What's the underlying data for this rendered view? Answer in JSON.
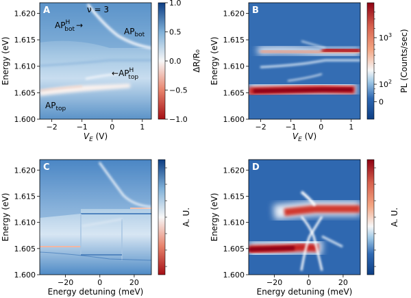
{
  "colors": {
    "red": "#a50f15",
    "white": "#f7f7f7",
    "blue": "#2c5fa8",
    "blue_dark": "#0d3e84",
    "red_dark": "#8e0012"
  },
  "chart_data": [
    {
      "type": "heatmap",
      "panel": "A",
      "title": "ν = 3",
      "xlabel": "V_E (V)",
      "ylabel": "Energy (eV)",
      "xlim": [
        -2.4,
        1.3
      ],
      "ylim": [
        1.6,
        1.622
      ],
      "xticks": [
        -2,
        -1,
        0,
        1
      ],
      "yticks": [
        1.6,
        1.605,
        1.61,
        1.615,
        1.62
      ],
      "colorbar": {
        "label": "ΔR/R₀",
        "range": [
          -1.0,
          1.0
        ],
        "ticks": [
          -1.0,
          -0.5,
          0.0,
          0.5,
          1.0
        ],
        "colormap": "RdBu"
      },
      "annotations": [
        {
          "text": "AP",
          "sup": "H",
          "sub": "bot",
          "arrow": "→"
        },
        {
          "text": "AP",
          "sub": "bot"
        },
        {
          "text": "AP",
          "sup": "H",
          "sub": "top",
          "arrow": "←"
        },
        {
          "text": "AP",
          "sub": "top"
        }
      ]
    },
    {
      "type": "heatmap",
      "panel": "B",
      "xlabel": "V_E (V)",
      "ylabel": "Energy (eV)",
      "xlim": [
        -2.4,
        1.3
      ],
      "ylim": [
        1.6,
        1.622
      ],
      "xticks": [
        -2,
        -1,
        0,
        1
      ],
      "yticks": [
        1.6,
        1.605,
        1.61,
        1.615,
        1.62
      ],
      "colorbar": {
        "label": "PL (Counts/sec)",
        "scale": "symlog",
        "ticks": [
          0,
          100,
          1000
        ],
        "colormap": "RdBu_r"
      }
    },
    {
      "type": "heatmap",
      "panel": "C",
      "xlabel": "Energy detuning (meV)",
      "ylabel": "Energy (eV)",
      "xlim": [
        -35,
        30
      ],
      "ylim": [
        1.6,
        1.622
      ],
      "xticks": [
        -20,
        0,
        20
      ],
      "yticks": [
        1.6,
        1.605,
        1.61,
        1.615,
        1.62
      ],
      "colorbar": {
        "label": "A. U.",
        "colormap": "RdBu"
      }
    },
    {
      "type": "heatmap",
      "panel": "D",
      "xlabel": "Energy detuning (meV)",
      "ylabel": "Energy (eV)",
      "xlim": [
        -35,
        30
      ],
      "ylim": [
        1.6,
        1.622
      ],
      "xticks": [
        -20,
        0,
        20
      ],
      "yticks": [
        1.6,
        1.605,
        1.61,
        1.615,
        1.62
      ],
      "colorbar": {
        "label": "A. U.",
        "colormap": "RdBu_r"
      }
    }
  ]
}
